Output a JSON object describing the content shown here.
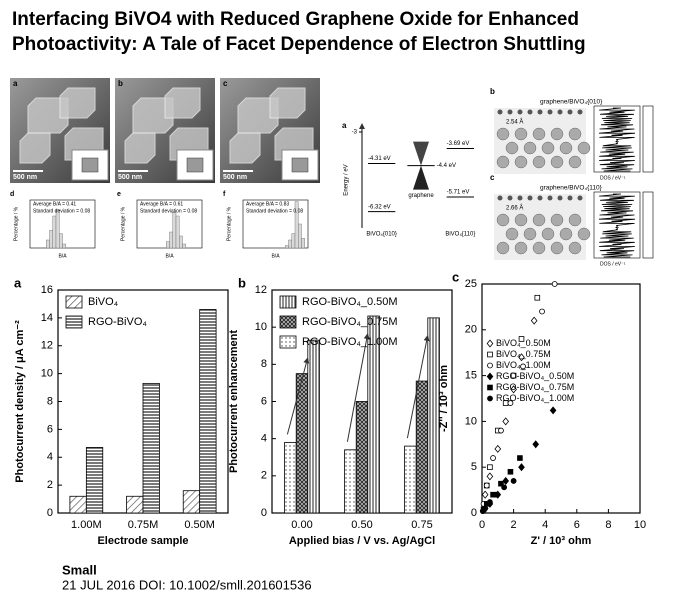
{
  "title": [
    "Interfacing BiVO4 with Reduced Graphene Oxide for Enhanced",
    "Photoactivity: A Tale of Facet Dependence of Electron Shuttling"
  ],
  "footer": {
    "journal": "Small",
    "citation": "21 JUL 2016 DOI: 10.1002/smll.201601536"
  },
  "sem_panels": [
    {
      "label": "a",
      "scale": "500 nm"
    },
    {
      "label": "b",
      "scale": "500 nm"
    },
    {
      "label": "c",
      "scale": "500 nm"
    }
  ],
  "dos_panels": [
    {
      "label": "b",
      "title": "graphene/BiVO₄{010}",
      "distance": "2.54 Å",
      "dos_axis": "DOS / eV⁻¹"
    },
    {
      "label": "c",
      "title": "graphene/BiVO₄{110}",
      "distance": "2.66 Å",
      "dos_axis": "DOS / eV⁻¹"
    }
  ],
  "chart_data": [
    {
      "type": "bar",
      "panel": "a",
      "categories": [
        "1.00M",
        "0.75M",
        "0.50M"
      ],
      "series": [
        {
          "name": "BiVO₄",
          "color": "#000000",
          "values": [
            1.2,
            1.2,
            1.6
          ]
        },
        {
          "name": "RGO-BiVO₄",
          "color": "#000000",
          "values": [
            4.7,
            9.3,
            14.6
          ]
        }
      ],
      "ylim": [
        0,
        16
      ],
      "yticks": [
        0,
        2,
        4,
        6,
        8,
        10,
        12,
        14,
        16
      ],
      "xlabel": "Electrode sample",
      "ylabel": "Photocurrent density / μA cm⁻²",
      "legend": "upper left"
    },
    {
      "type": "bar",
      "panel": "b",
      "categories": [
        "0.00",
        "0.50",
        "0.75"
      ],
      "series": [
        {
          "name": "RGO-BiVO₄_0.50M",
          "color": "#000000",
          "values": [
            9.3,
            10.6,
            10.5
          ]
        },
        {
          "name": "RGO-BiVO₄_0.75M",
          "color": "#000000",
          "values": [
            7.5,
            6.0,
            7.1
          ]
        },
        {
          "name": "RGO-BiVO₄_1.00M",
          "color": "#000000",
          "values": [
            3.8,
            3.4,
            3.6
          ]
        }
      ],
      "ylim": [
        0,
        12
      ],
      "yticks": [
        0,
        2,
        4,
        6,
        8,
        10,
        12
      ],
      "xlabel": "Applied bias / V vs. Ag/AgCl",
      "ylabel": "Photocurrent enhancement",
      "legend": "upper left"
    },
    {
      "type": "scatter",
      "panel": "c",
      "series": [
        {
          "name": "BiVO₄_0.50M",
          "marker": "open-diamond",
          "color": "#000000",
          "x": [
            0.2,
            0.5,
            1.0,
            1.5,
            2.0,
            2.5,
            3.3
          ],
          "values": [
            2,
            4,
            7,
            10,
            13.5,
            17,
            21
          ]
        },
        {
          "name": "BiVO₄_0.75M",
          "marker": "open-square",
          "color": "#000000",
          "x": [
            0.3,
            0.5,
            1.0,
            1.5,
            2.0,
            2.5,
            3.5
          ],
          "values": [
            3,
            5,
            9,
            12,
            15,
            19,
            23.5
          ]
        },
        {
          "name": "BiVO₄_1.00M",
          "marker": "open-circle",
          "color": "#000000",
          "x": [
            0.1,
            0.3,
            0.7,
            1.2,
            1.8,
            2.6,
            3.8,
            4.6
          ],
          "values": [
            1,
            3,
            6,
            9,
            12,
            16,
            22,
            25
          ]
        },
        {
          "name": "RGO-BiVO₄_0.50M",
          "marker": "filled-diamond",
          "color": "#000000",
          "x": [
            0.2,
            0.5,
            1.0,
            1.5,
            2.5,
            3.4,
            4.5
          ],
          "values": [
            0.5,
            1,
            2,
            3.5,
            5,
            7.5,
            11.2
          ]
        },
        {
          "name": "RGO-BiVO₄_0.75M",
          "marker": "filled-square",
          "color": "#000000",
          "x": [
            0.1,
            0.3,
            0.7,
            1.2,
            1.8,
            2.4
          ],
          "values": [
            0.4,
            1,
            2,
            3.2,
            4.5,
            6
          ]
        },
        {
          "name": "RGO-BiVO₄_1.00M",
          "marker": "filled-circle",
          "color": "#000000",
          "x": [
            0.05,
            0.2,
            0.5,
            0.9,
            1.4,
            2.0
          ],
          "values": [
            0.2,
            0.5,
            1.2,
            2,
            2.8,
            3.5
          ]
        }
      ],
      "xlim": [
        0,
        10
      ],
      "xticks": [
        0,
        2,
        4,
        6,
        8,
        10
      ],
      "ylim": [
        0,
        25
      ],
      "yticks": [
        0,
        5,
        10,
        15,
        20,
        25
      ],
      "xlabel": "Z' / 10³ ohm",
      "ylabel": "-Z'' / 10³ ohm",
      "legend": "center left"
    },
    {
      "type": "histogram",
      "panel": "d",
      "annotations": [
        "Average B/A = 0.41",
        "Standard deviation = 0.08"
      ],
      "bins": [
        0.25,
        0.3,
        0.35,
        0.4,
        0.45,
        0.5,
        0.55
      ],
      "values": [
        10,
        22,
        40,
        48,
        18,
        5
      ],
      "color": "#d9d9d9",
      "xlim": [
        0,
        1
      ],
      "ylim": [
        0,
        60
      ],
      "xlabel": "B/A",
      "ylabel": "Percentage / %"
    },
    {
      "type": "histogram",
      "panel": "e",
      "annotations": [
        "Average B/A = 0.61",
        "Standard deviation = 0.08"
      ],
      "bins": [
        0.45,
        0.5,
        0.55,
        0.6,
        0.65,
        0.7,
        0.75
      ],
      "values": [
        8,
        20,
        45,
        40,
        15,
        5
      ],
      "color": "#d9d9d9",
      "xlim": [
        0,
        1
      ],
      "ylim": [
        0,
        60
      ],
      "xlabel": "B/A",
      "ylabel": "Percentage / %"
    },
    {
      "type": "histogram",
      "panel": "f",
      "annotations": [
        "Average B/A = 0.83",
        "Standard deviation = 0.08"
      ],
      "bins": [
        0.65,
        0.7,
        0.75,
        0.8,
        0.85,
        0.9,
        0.95
      ],
      "values": [
        3,
        10,
        18,
        58,
        30,
        12
      ],
      "color": "#d9d9d9",
      "xlim": [
        0,
        1
      ],
      "ylim": [
        0,
        60
      ],
      "xlabel": "B/A",
      "ylabel": "Percentage / %"
    },
    {
      "type": "levels",
      "panel": "a",
      "ylabel": "Energy / eV",
      "ylim": [
        -7,
        -3
      ],
      "yticks": [
        -3
      ],
      "columns": [
        {
          "name": "BiVO₄{010}",
          "levels": [
            {
              "value": -4.31,
              "label": "-4.31 eV"
            },
            {
              "value": -6.32,
              "label": "-6.32 eV"
            }
          ]
        },
        {
          "name": "graphene",
          "levels": [
            {
              "value": -4.4,
              "label": "-4.4 eV"
            }
          ]
        },
        {
          "name": "BiVO₄{110}",
          "levels": [
            {
              "value": -3.69,
              "label": "-3.69 eV"
            },
            {
              "value": -5.71,
              "label": "-5.71 eV"
            }
          ]
        }
      ]
    }
  ]
}
